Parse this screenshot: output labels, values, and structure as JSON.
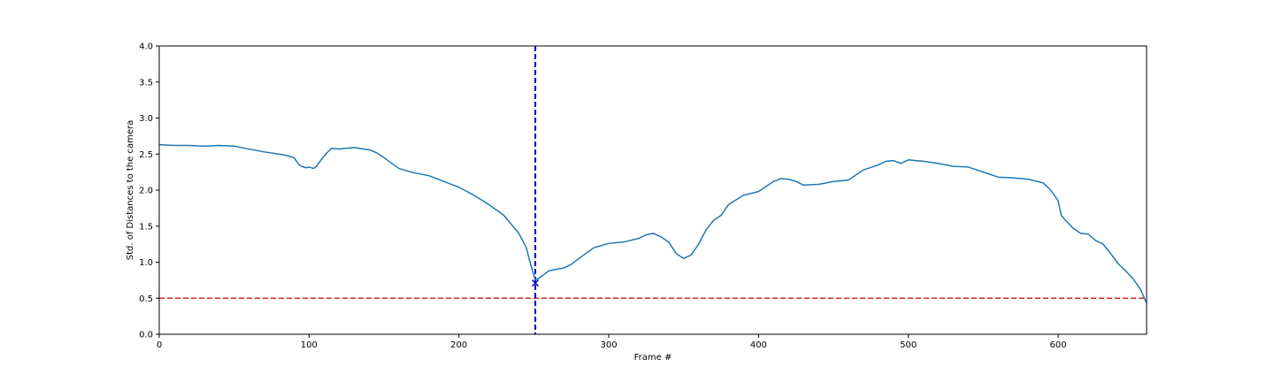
{
  "chart_data": {
    "type": "line",
    "xlabel": "Frame #",
    "ylabel": "Std. of Distances to the camera",
    "xlim": [
      0,
      659
    ],
    "ylim": [
      0,
      4.0
    ],
    "xticks": [
      0,
      100,
      200,
      300,
      400,
      500,
      600
    ],
    "xtick_labels": [
      "0",
      "100",
      "200",
      "300",
      "400",
      "500",
      "600"
    ],
    "yticks": [
      0.0,
      0.5,
      1.0,
      1.5,
      2.0,
      2.5,
      3.0,
      3.5,
      4.0
    ],
    "ytick_labels": [
      "0.0",
      "0.5",
      "1.0",
      "1.5",
      "2.0",
      "2.5",
      "3.0",
      "3.5",
      "4.0"
    ],
    "grid": false,
    "series": [
      {
        "color": "#1f77b4",
        "x": [
          0,
          10,
          20,
          30,
          40,
          50,
          60,
          70,
          80,
          85,
          90,
          93,
          95,
          98,
          100,
          103,
          105,
          108,
          112,
          115,
          120,
          130,
          140,
          145,
          150,
          160,
          170,
          180,
          190,
          200,
          210,
          220,
          230,
          240,
          245,
          248,
          251,
          255,
          260,
          265,
          270,
          275,
          280,
          290,
          300,
          310,
          320,
          325,
          330,
          335,
          340,
          345,
          350,
          355,
          360,
          365,
          370,
          375,
          380,
          390,
          400,
          405,
          410,
          415,
          420,
          425,
          430,
          440,
          450,
          460,
          470,
          480,
          485,
          490,
          495,
          500,
          505,
          510,
          520,
          530,
          540,
          550,
          560,
          570,
          580,
          590,
          595,
          600,
          602,
          605,
          610,
          615,
          620,
          625,
          630,
          635,
          640,
          645,
          650,
          655,
          659
        ],
        "y": [
          2.63,
          2.62,
          2.62,
          2.61,
          2.62,
          2.61,
          2.57,
          2.53,
          2.5,
          2.48,
          2.45,
          2.36,
          2.33,
          2.31,
          2.32,
          2.3,
          2.33,
          2.42,
          2.52,
          2.58,
          2.57,
          2.59,
          2.56,
          2.52,
          2.45,
          2.3,
          2.24,
          2.2,
          2.12,
          2.04,
          1.93,
          1.8,
          1.65,
          1.4,
          1.2,
          0.96,
          0.75,
          0.8,
          0.88,
          0.9,
          0.92,
          0.97,
          1.05,
          1.2,
          1.26,
          1.28,
          1.33,
          1.38,
          1.4,
          1.35,
          1.28,
          1.12,
          1.05,
          1.1,
          1.25,
          1.45,
          1.58,
          1.65,
          1.8,
          1.93,
          1.98,
          2.05,
          2.12,
          2.16,
          2.15,
          2.12,
          2.07,
          2.08,
          2.12,
          2.14,
          2.28,
          2.35,
          2.4,
          2.41,
          2.37,
          2.42,
          2.41,
          2.4,
          2.37,
          2.33,
          2.32,
          2.25,
          2.18,
          2.17,
          2.15,
          2.1,
          2.0,
          1.85,
          1.65,
          1.58,
          1.47,
          1.4,
          1.39,
          1.3,
          1.25,
          1.12,
          0.98,
          0.88,
          0.77,
          0.62,
          0.43
        ]
      }
    ],
    "reference_lines": [
      {
        "orientation": "horizontal",
        "value": 0.5,
        "style": "dashed",
        "color": "#d62728"
      },
      {
        "orientation": "vertical",
        "value": 251,
        "style": "dashed",
        "color": "#0000cc"
      }
    ],
    "markers": [
      {
        "x": 251,
        "y": 0.71,
        "symbol": "x",
        "color": "#0000cc"
      }
    ]
  }
}
